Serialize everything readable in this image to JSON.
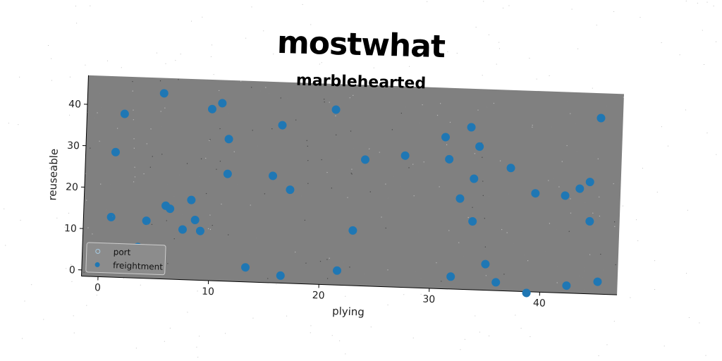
{
  "chart_data": {
    "type": "scatter",
    "title": "mostwhat",
    "subtitle": "marblehearted",
    "xlabel": "plying",
    "ylabel": "reuseable",
    "xlim": [
      -1.5,
      47
    ],
    "ylim": [
      -1.5,
      47
    ],
    "xticks": [
      0,
      10,
      20,
      30,
      40
    ],
    "yticks": [
      0,
      10,
      20,
      30,
      40
    ],
    "grid": false,
    "legend_position": "lower-left",
    "plot_background": "#808080",
    "series": [
      {
        "name": "port",
        "marker": "hollow",
        "color": "#a6cbe3",
        "points": []
      },
      {
        "name": "freightment",
        "marker": "filled",
        "color": "#1f77b4",
        "points": [
          [
            1.0,
            13.0
          ],
          [
            1.2,
            28.7
          ],
          [
            1.9,
            38.0
          ],
          [
            4.2,
            12.4
          ],
          [
            3.5,
            6.0
          ],
          [
            5.4,
            43.3
          ],
          [
            5.9,
            16.2
          ],
          [
            6.3,
            15.5
          ],
          [
            7.5,
            10.6
          ],
          [
            8.2,
            17.8
          ],
          [
            8.6,
            13.0
          ],
          [
            9.1,
            10.4
          ],
          [
            9.8,
            39.9
          ],
          [
            10.7,
            41.4
          ],
          [
            11.4,
            32.8
          ],
          [
            11.4,
            24.4
          ],
          [
            13.3,
            2.0
          ],
          [
            15.5,
            24.3
          ],
          [
            16.2,
            36.6
          ],
          [
            16.5,
            0.3
          ],
          [
            17.1,
            21.1
          ],
          [
            21.0,
            40.8
          ],
          [
            21.6,
            2.0
          ],
          [
            22.9,
            11.8
          ],
          [
            23.8,
            29.0
          ],
          [
            27.4,
            30.3
          ],
          [
            31.0,
            35.1
          ],
          [
            31.4,
            29.8
          ],
          [
            31.9,
            1.5
          ],
          [
            32.5,
            20.4
          ],
          [
            33.3,
            37.7
          ],
          [
            33.7,
            15.0
          ],
          [
            33.7,
            25.3
          ],
          [
            34.1,
            33.1
          ],
          [
            35.0,
            4.8
          ],
          [
            36.0,
            0.5
          ],
          [
            37.0,
            28.2
          ],
          [
            38.8,
            -1.8
          ],
          [
            39.3,
            22.3
          ],
          [
            42.0,
            22.0
          ],
          [
            42.4,
            0.3
          ],
          [
            43.3,
            23.8
          ],
          [
            44.2,
            25.5
          ],
          [
            44.3,
            16.0
          ],
          [
            45.0,
            41.0
          ],
          [
            45.2,
            1.5
          ]
        ]
      }
    ]
  }
}
